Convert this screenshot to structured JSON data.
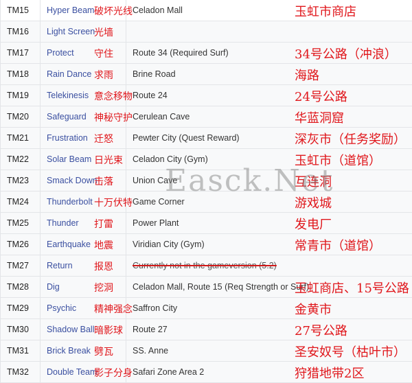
{
  "watermark": "Easck.Net",
  "rows": [
    {
      "tm": "TM15",
      "move": "Hyper Beam",
      "move_cn": "破坏光线",
      "location": "Celadon Mall",
      "location_cn": "玉虹市商店"
    },
    {
      "tm": "TM16",
      "move": "Light Screen",
      "move_cn": "光墙",
      "location": "",
      "location_cn": ""
    },
    {
      "tm": "TM17",
      "move": "Protect",
      "move_cn": "守住",
      "location": "Route 34 (Required Surf)",
      "location_cn": "34号公路（冲浪）"
    },
    {
      "tm": "TM18",
      "move": "Rain Dance",
      "move_cn": "求雨",
      "location": "Brine Road",
      "location_cn": "海路"
    },
    {
      "tm": "TM19",
      "move": "Telekinesis",
      "move_cn": "意念移物",
      "location": "Route 24",
      "location_cn": "24号公路"
    },
    {
      "tm": "TM20",
      "move": "Safeguard",
      "move_cn": "神秘守护",
      "location": "Cerulean Cave",
      "location_cn": "华蓝洞窟"
    },
    {
      "tm": "TM21",
      "move": "Frustration",
      "move_cn": "迁怒",
      "location": "Pewter City (Quest Reward)",
      "location_cn": "深灰市（任务奖励）"
    },
    {
      "tm": "TM22",
      "move": "Solar Beam",
      "move_cn": "日光束",
      "location": "Celadon City (Gym)",
      "location_cn": "玉虹市（道馆）"
    },
    {
      "tm": "TM23",
      "move": "Smack Down",
      "move_cn": "击落",
      "location": "Union Cave",
      "location_cn": "互连洞"
    },
    {
      "tm": "TM24",
      "move": "Thunderbolt",
      "move_cn": "十万伏特",
      "location": "Game Corner",
      "location_cn": "游戏城"
    },
    {
      "tm": "TM25",
      "move": "Thunder",
      "move_cn": "打雷",
      "location": "Power Plant",
      "location_cn": "发电厂"
    },
    {
      "tm": "TM26",
      "move": "Earthquake",
      "move_cn": "地震",
      "location": "Viridian City (Gym)",
      "location_cn": "常青市（道馆）"
    },
    {
      "tm": "TM27",
      "move": "Return",
      "move_cn": "报恩",
      "location": "Currently not in the gameversion (5.2)",
      "location_cn": ""
    },
    {
      "tm": "TM28",
      "move": "Dig",
      "move_cn": "挖洞",
      "location": "Celadon Mall, Route 15 (Req Strength or Surf)",
      "location_cn": "玉虹商店、15号公路"
    },
    {
      "tm": "TM29",
      "move": "Psychic",
      "move_cn": "精神强念",
      "location": "Saffron City",
      "location_cn": "金黄市"
    },
    {
      "tm": "TM30",
      "move": "Shadow Ball",
      "move_cn": "暗影球",
      "location": "Route 27",
      "location_cn": "27号公路"
    },
    {
      "tm": "TM31",
      "move": "Brick Break",
      "move_cn": "劈瓦",
      "location": "SS. Anne",
      "location_cn": "圣安奴号（枯叶市）"
    },
    {
      "tm": "TM32",
      "move": "Double Team",
      "move_cn": "影子分身",
      "location": "Safari Zone Area 2",
      "location_cn": "狩猎地带2区"
    }
  ]
}
